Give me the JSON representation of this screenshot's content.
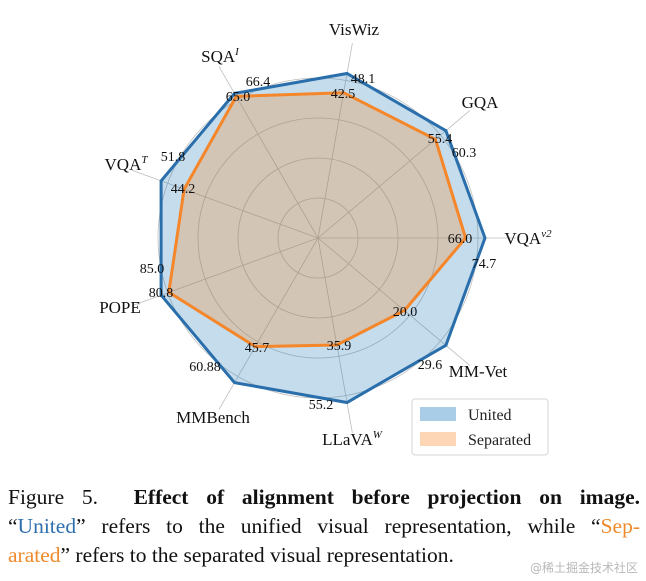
{
  "chart_data": {
    "type": "radar",
    "axes": [
      {
        "name": "VQA",
        "sup": "v2"
      },
      {
        "name": "GQA",
        "sup": ""
      },
      {
        "name": "VisWiz",
        "sup": ""
      },
      {
        "name": "SQA",
        "sup": "I"
      },
      {
        "name": "VQA",
        "sup": "T"
      },
      {
        "name": "POPE",
        "sup": ""
      },
      {
        "name": "MMBench",
        "sup": ""
      },
      {
        "name": "LLaVA",
        "sup": "W"
      },
      {
        "name": "MM-Vet",
        "sup": ""
      }
    ],
    "series": [
      {
        "name": "United",
        "values": [
          74.7,
          60.3,
          48.1,
          66.4,
          51.8,
          85.0,
          60.88,
          55.2,
          29.6
        ],
        "labels": [
          "74.7",
          "60.3",
          "48.1",
          "66.4",
          "51.8",
          "85.0",
          "60.88",
          "55.2",
          "29.6"
        ],
        "color": "#1f77b4"
      },
      {
        "name": "Separated",
        "values": [
          66.0,
          55.4,
          42.5,
          65.0,
          44.2,
          80.8,
          45.7,
          35.9,
          20.0
        ],
        "labels": [
          "66.0",
          "55.4",
          "42.5",
          "65.0",
          "44.2",
          "80.8",
          "45.7",
          "35.9",
          "20.0"
        ],
        "color": "#ff7f0e"
      }
    ],
    "normalization": "per-axis, relative to United value",
    "grid": true,
    "legend": "bottom-right"
  },
  "caption": {
    "figure_label": "Figure 5.",
    "title": "Effect of alignment before projection on image.",
    "q_open": "“",
    "united": "United",
    "mid": "” refers to the unified visual representation, while “",
    "sep1": "Sep-",
    "sep2": "arated",
    "end": "” refers to the separated visual representation."
  },
  "watermark": "@稀土掘金技术社区"
}
